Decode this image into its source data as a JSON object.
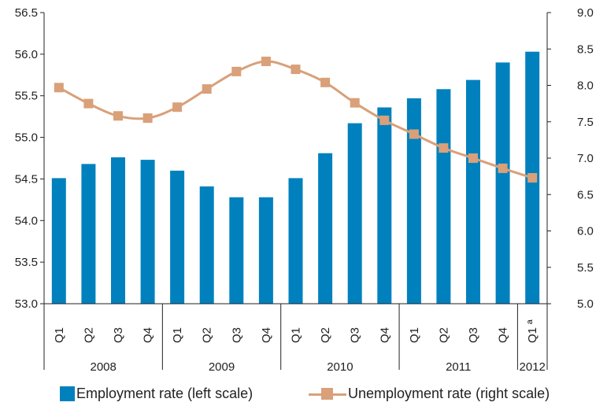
{
  "chart_data": {
    "type": "bar",
    "categories": [
      "Q1",
      "Q2",
      "Q3",
      "Q4",
      "Q1",
      "Q2",
      "Q3",
      "Q4",
      "Q1",
      "Q2",
      "Q3",
      "Q4",
      "Q1",
      "Q2",
      "Q3",
      "Q4",
      "Q1 ª"
    ],
    "groups": [
      {
        "label": "2008",
        "count": 4
      },
      {
        "label": "2009",
        "count": 4
      },
      {
        "label": "2010",
        "count": 4
      },
      {
        "label": "2011",
        "count": 4
      },
      {
        "label": "2012",
        "count": 1
      }
    ],
    "series": [
      {
        "name": "Employment rate (left scale)",
        "type": "bar",
        "axis": "left",
        "color": "#0081be",
        "values": [
          54.51,
          54.68,
          54.76,
          54.73,
          54.6,
          54.41,
          54.28,
          54.28,
          54.51,
          54.81,
          55.17,
          55.36,
          55.47,
          55.58,
          55.69,
          55.9,
          56.03
        ]
      },
      {
        "name": "Unemployment rate (right scale)",
        "type": "line",
        "axis": "right",
        "color": "#d9a079",
        "values": [
          7.97,
          7.75,
          7.58,
          7.55,
          7.7,
          7.95,
          8.19,
          8.33,
          8.22,
          8.04,
          7.76,
          7.52,
          7.33,
          7.14,
          7.0,
          6.86,
          6.73
        ]
      }
    ],
    "y_left": {
      "lim": [
        53.0,
        56.5
      ],
      "ticks": [
        "53.0",
        "53.5",
        "54.0",
        "54.5",
        "55.0",
        "55.5",
        "56.0",
        "56.5"
      ]
    },
    "y_right": {
      "lim": [
        5.0,
        9.0
      ],
      "ticks": [
        "5.0",
        "5.5",
        "6.0",
        "6.5",
        "7.0",
        "7.5",
        "8.0",
        "8.5",
        "9.0"
      ]
    },
    "grid": false,
    "legend_position": "bottom"
  }
}
